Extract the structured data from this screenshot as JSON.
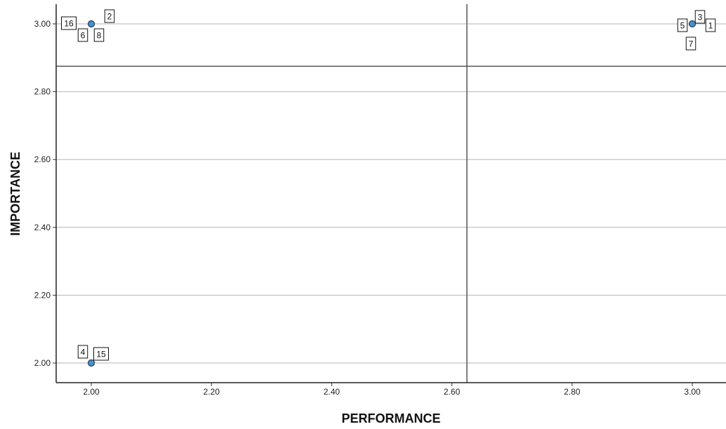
{
  "chart_data": {
    "type": "scatter",
    "xlabel": "PERFORMANCE",
    "ylabel": "IMPORTANCE",
    "xlim": [
      1.95,
      3.05
    ],
    "ylim": [
      1.95,
      3.06
    ],
    "x_ticks": [
      "2.00",
      "2.20",
      "2.40",
      "2.60",
      "2.80",
      "3.00"
    ],
    "y_ticks": [
      "2.00",
      "2.20",
      "2.40",
      "2.60",
      "2.80",
      "3.00"
    ],
    "grid": "horizontal",
    "reference_lines": {
      "x": 2.625,
      "y": 2.875
    },
    "point_color": "#4a90c4",
    "points": [
      {
        "x": 2.0,
        "y": 3.0,
        "labels": [
          "16",
          "6",
          "8",
          "2"
        ]
      },
      {
        "x": 3.0,
        "y": 3.0,
        "labels": [
          "5",
          "3",
          "1",
          "7"
        ]
      },
      {
        "x": 2.0,
        "y": 2.0,
        "labels": [
          "4",
          "15"
        ]
      }
    ]
  }
}
